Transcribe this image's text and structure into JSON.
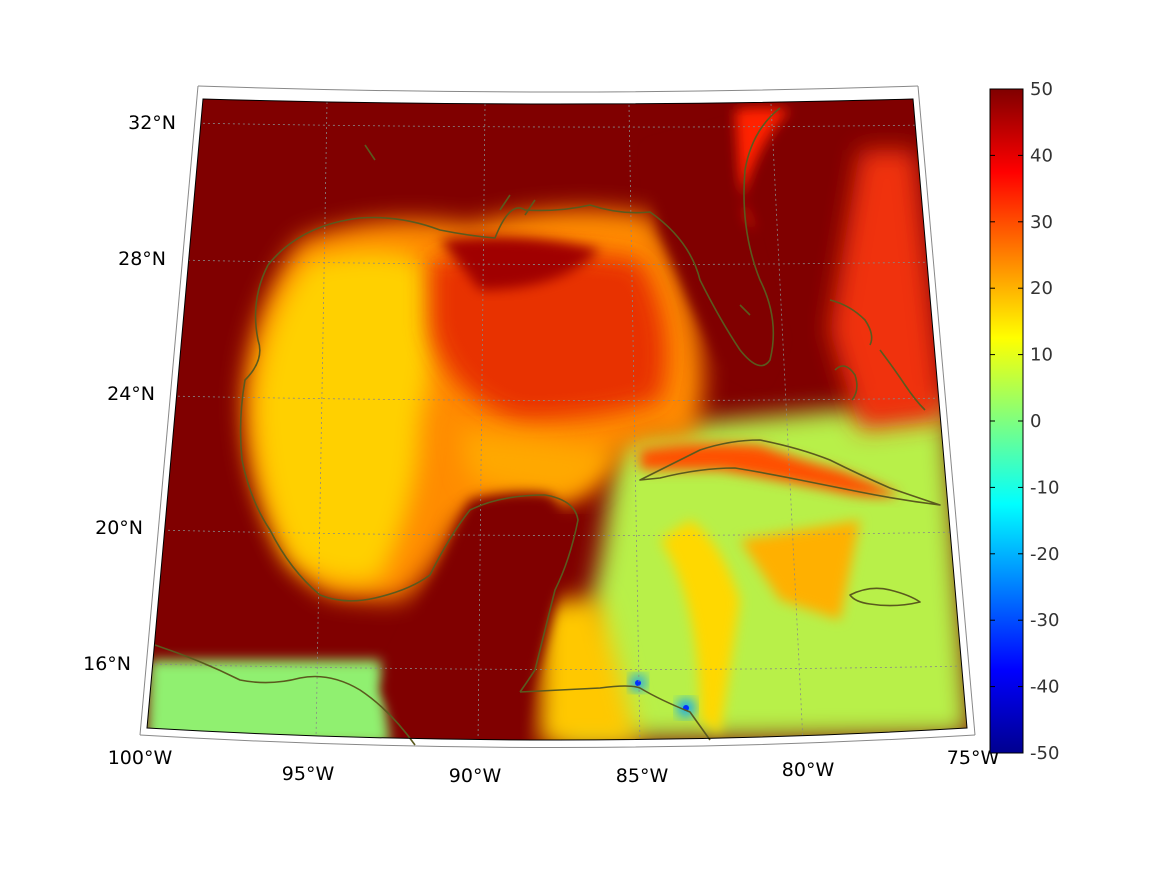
{
  "map": {
    "lat_labels": [
      "32°N",
      "28°N",
      "24°N",
      "20°N",
      "16°N"
    ],
    "lon_labels": [
      "100°W",
      "95°W",
      "90°W",
      "85°W",
      "80°W",
      "75°W"
    ],
    "extent": {
      "lon_min": -100,
      "lon_max": -75,
      "lat_min": 14.2,
      "lat_max": 33.0
    },
    "colors": {
      "land_saturated": "#800000",
      "coastline": "#5a5a1e",
      "frame": "#000000",
      "graticule": "#888888"
    }
  },
  "colorbar": {
    "colormap": "jet",
    "min": -50,
    "max": 50,
    "tick_labels": [
      "50",
      "40",
      "30",
      "20",
      "10",
      "0",
      "-10",
      "-20",
      "-30",
      "-40",
      "-50"
    ]
  }
}
